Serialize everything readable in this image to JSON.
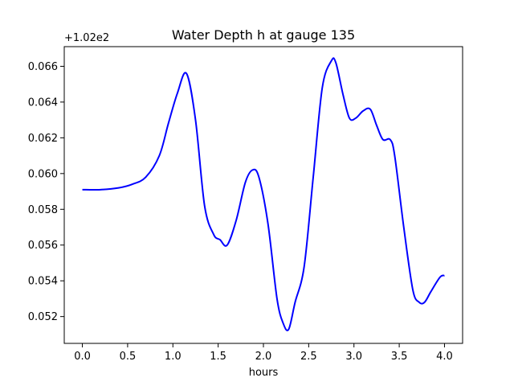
{
  "chart_data": {
    "type": "line",
    "title": "Water Depth h at gauge 135",
    "xlabel": "hours",
    "ylabel": "",
    "offset_text": "+1.02e2",
    "xlim": [
      -0.2,
      4.2
    ],
    "ylim": [
      0.0505,
      0.0671
    ],
    "xticks": [
      0.0,
      0.5,
      1.0,
      1.5,
      2.0,
      2.5,
      3.0,
      3.5,
      4.0
    ],
    "xtick_labels": [
      "0.0",
      "0.5",
      "1.0",
      "1.5",
      "2.0",
      "2.5",
      "3.0",
      "3.5",
      "4.0"
    ],
    "yticks": [
      0.052,
      0.054,
      0.056,
      0.058,
      0.06,
      0.062,
      0.064,
      0.066
    ],
    "ytick_labels": [
      "0.052",
      "0.054",
      "0.056",
      "0.058",
      "0.060",
      "0.062",
      "0.064",
      "0.066"
    ],
    "grid": false,
    "series": [
      {
        "color": "#0000ff",
        "x": [
          0.0,
          0.2,
          0.4,
          0.55,
          0.7,
          0.85,
          0.95,
          1.05,
          1.15,
          1.25,
          1.35,
          1.45,
          1.52,
          1.6,
          1.7,
          1.8,
          1.88,
          1.95,
          2.05,
          2.15,
          2.22,
          2.28,
          2.35,
          2.45,
          2.55,
          2.65,
          2.75,
          2.8,
          2.88,
          2.95,
          3.02,
          3.1,
          3.18,
          3.25,
          3.32,
          3.4,
          3.45,
          3.55,
          3.65,
          3.72,
          3.78,
          3.85,
          3.95,
          4.0
        ],
        "y": [
          0.0591,
          0.0591,
          0.0592,
          0.0594,
          0.0598,
          0.061,
          0.0628,
          0.0645,
          0.0656,
          0.063,
          0.0582,
          0.0566,
          0.0563,
          0.056,
          0.0574,
          0.0595,
          0.0602,
          0.0598,
          0.0572,
          0.053,
          0.0516,
          0.0513,
          0.0528,
          0.0548,
          0.0598,
          0.0648,
          0.0663,
          0.0662,
          0.0644,
          0.0631,
          0.0631,
          0.0635,
          0.0636,
          0.0627,
          0.0619,
          0.0619,
          0.061,
          0.057,
          0.0535,
          0.0528,
          0.0528,
          0.0534,
          0.0542,
          0.0543
        ]
      }
    ]
  }
}
